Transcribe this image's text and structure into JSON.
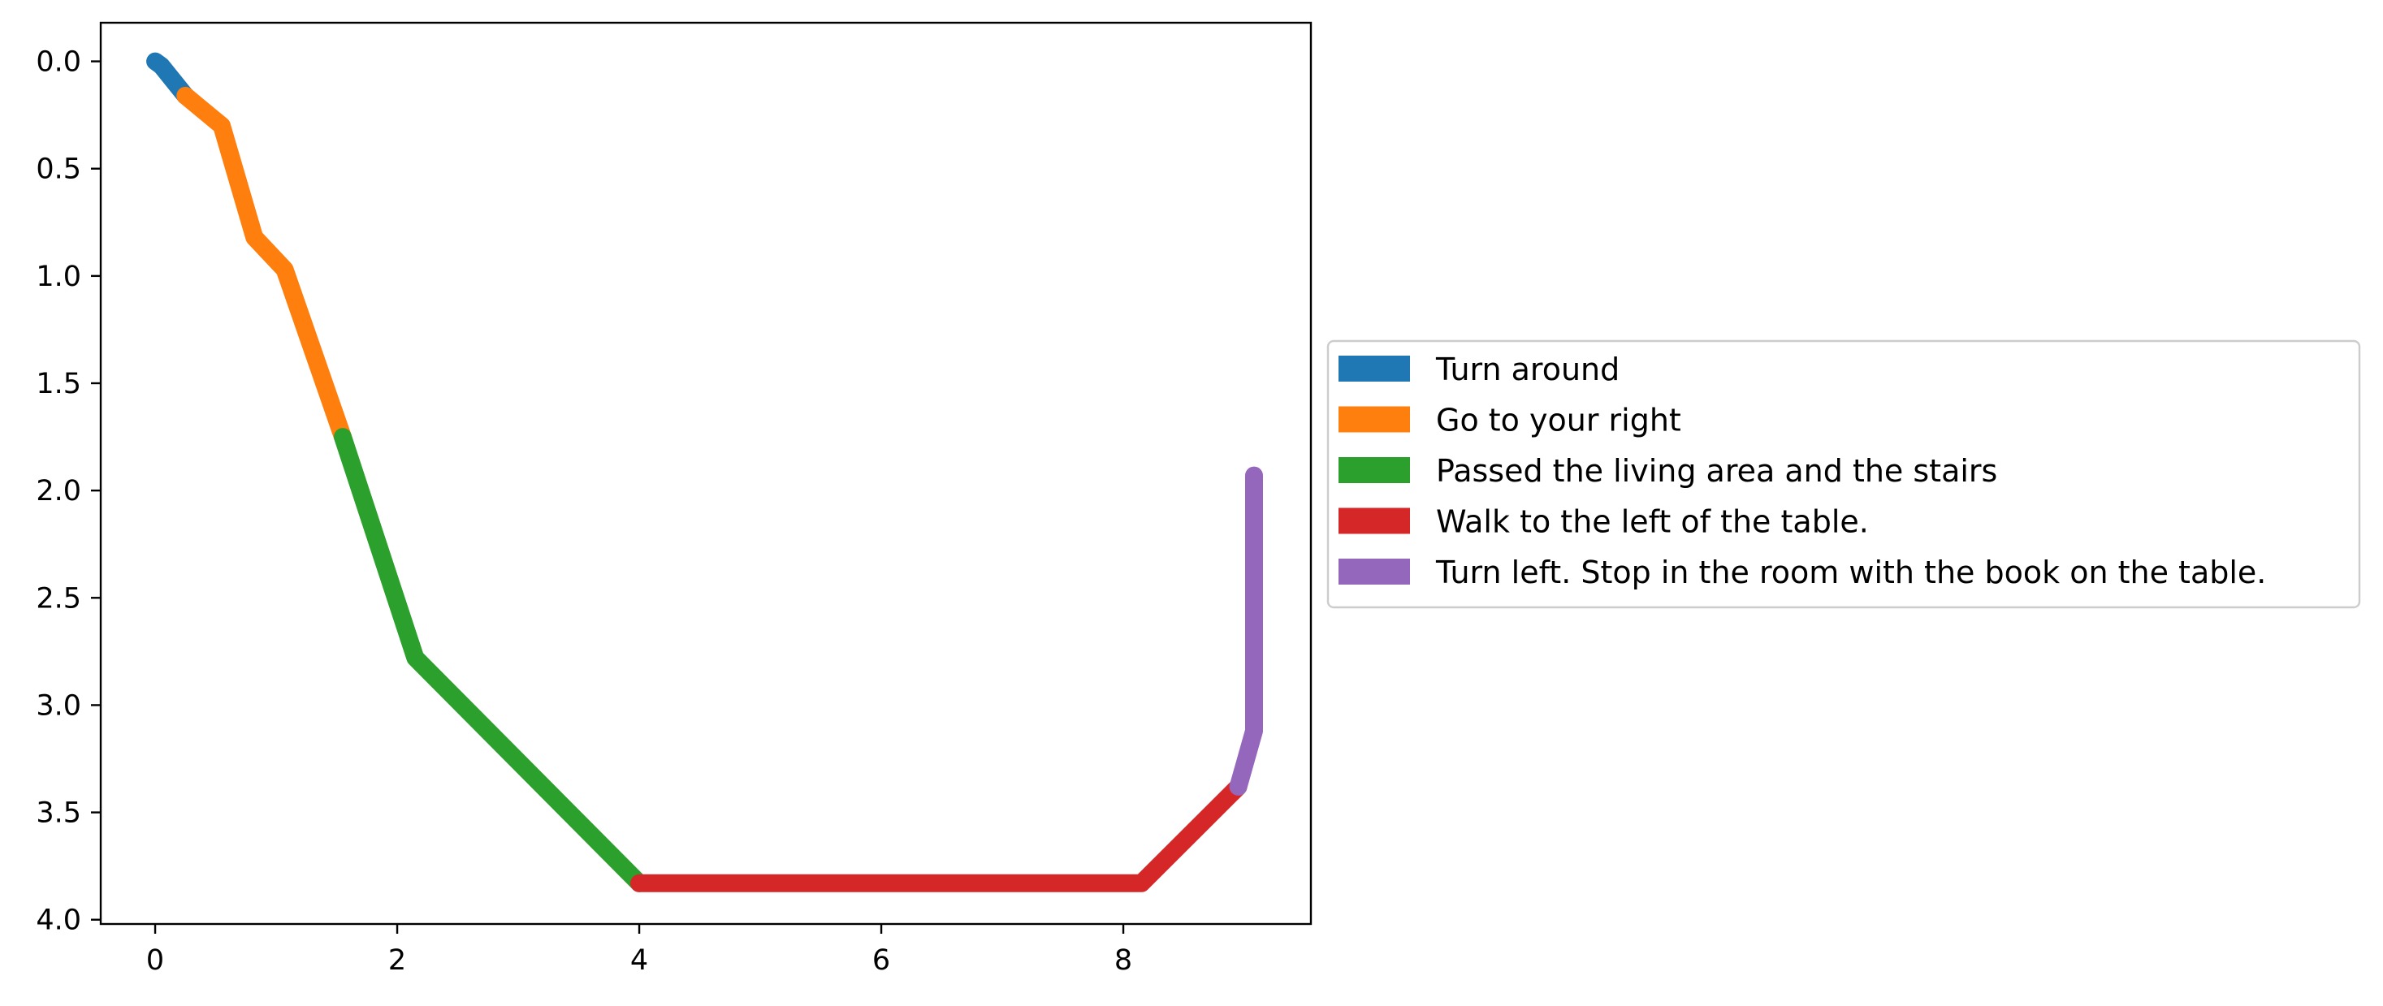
{
  "chart_data": {
    "type": "line",
    "title": "",
    "xlabel": "",
    "ylabel": "",
    "xlim": [
      -0.45,
      9.55
    ],
    "ylim": [
      4.02,
      -0.18
    ],
    "y_inverted": true,
    "grid": false,
    "legend_placement": "center-left outside right",
    "xticks": [
      0,
      2,
      4,
      6,
      8
    ],
    "xtick_labels": [
      "0",
      "2",
      "4",
      "6",
      "8"
    ],
    "yticks": [
      0.0,
      0.5,
      1.0,
      1.5,
      2.0,
      2.5,
      3.0,
      3.5,
      4.0
    ],
    "ytick_labels": [
      "0.0",
      "0.5",
      "1.0",
      "1.5",
      "2.0",
      "2.5",
      "3.0",
      "3.5",
      "4.0"
    ],
    "series": [
      {
        "name": "Turn around",
        "color": "#1f77b4",
        "x": [
          0.0,
          0.05,
          0.25
        ],
        "y": [
          0.0,
          0.02,
          0.16
        ]
      },
      {
        "name": "Go to your right",
        "color": "#ff7f0e",
        "x": [
          0.25,
          0.55,
          0.82,
          1.07,
          1.55
        ],
        "y": [
          0.16,
          0.3,
          0.82,
          0.97,
          1.75
        ]
      },
      {
        "name": "Passed the living area and the stairs",
        "color": "#2ca02c",
        "x": [
          1.55,
          2.15,
          4.0
        ],
        "y": [
          1.75,
          2.78,
          3.83
        ]
      },
      {
        "name": "Walk to the left of the table.",
        "color": "#d62728",
        "x": [
          4.0,
          8.15,
          8.95
        ],
        "y": [
          3.83,
          3.83,
          3.38
        ]
      },
      {
        "name": "Turn left. Stop in the room with the book on the table.",
        "color": "#9467bd",
        "x": [
          8.95,
          9.08,
          9.08
        ],
        "y": [
          3.38,
          3.12,
          1.93
        ]
      }
    ]
  }
}
